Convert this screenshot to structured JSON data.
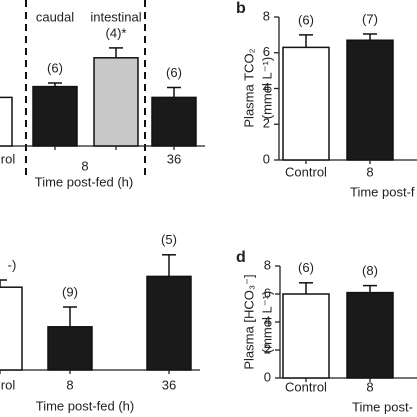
{
  "chart_data": [
    {
      "type": "bar",
      "categories": [
        "rol",
        null,
        null,
        "36"
      ],
      "group_label": "8",
      "subgroups": [
        "caudal",
        "intestinal"
      ],
      "values": [
        2.7,
        3.3,
        4.9,
        2.7
      ],
      "errors": [
        0.4,
        0.2,
        0.55,
        0.55
      ],
      "colors": [
        "#ffffff",
        "#1a1a1a",
        "#c8c8c8",
        "#1a1a1a"
      ],
      "annotations": [
        null,
        "(6)",
        "(4)*",
        "(6)"
      ],
      "xlabel": "Time post-fed (h)",
      "ylim": [
        0,
        8
      ]
    },
    {
      "type": "bar",
      "panel": "b",
      "categories": [
        "Control",
        "8"
      ],
      "values": [
        6.3,
        6.7
      ],
      "errors": [
        0.7,
        0.35
      ],
      "colors": [
        "#ffffff",
        "#1a1a1a"
      ],
      "annotations": [
        "(6)",
        "(7)"
      ],
      "ylabel": [
        "Plasma TCO₂",
        "(mmol L⁻¹)"
      ],
      "xlabel": "Time post-f",
      "ylim": [
        0,
        8
      ],
      "yticks": [
        0,
        2,
        4,
        6,
        8
      ]
    },
    {
      "type": "bar",
      "categories": [
        "rol",
        "8",
        "36"
      ],
      "values": [
        4.6,
        2.4,
        5.2
      ],
      "errors": [
        0.4,
        1.1,
        1.2
      ],
      "colors": [
        "#ffffff",
        "#1a1a1a",
        "#1a1a1a"
      ],
      "annotations": [
        "-)",
        "(9)",
        "(5)"
      ],
      "xlabel": "Time post-fed (h)",
      "ylim": [
        0,
        8
      ]
    },
    {
      "type": "bar",
      "panel": "d",
      "categories": [
        "Control",
        "8"
      ],
      "values": [
        6.0,
        6.1
      ],
      "errors": [
        0.8,
        0.5
      ],
      "colors": [
        "#ffffff",
        "#1a1a1a"
      ],
      "annotations": [
        "(6)",
        "(8)"
      ],
      "ylabel": [
        "Plasma [HCO₃⁻]",
        "(mmol L⁻¹)"
      ],
      "xlabel": "Time post-",
      "ylim": [
        0,
        8
      ],
      "yticks": [
        0,
        2,
        4,
        6,
        8
      ]
    }
  ]
}
